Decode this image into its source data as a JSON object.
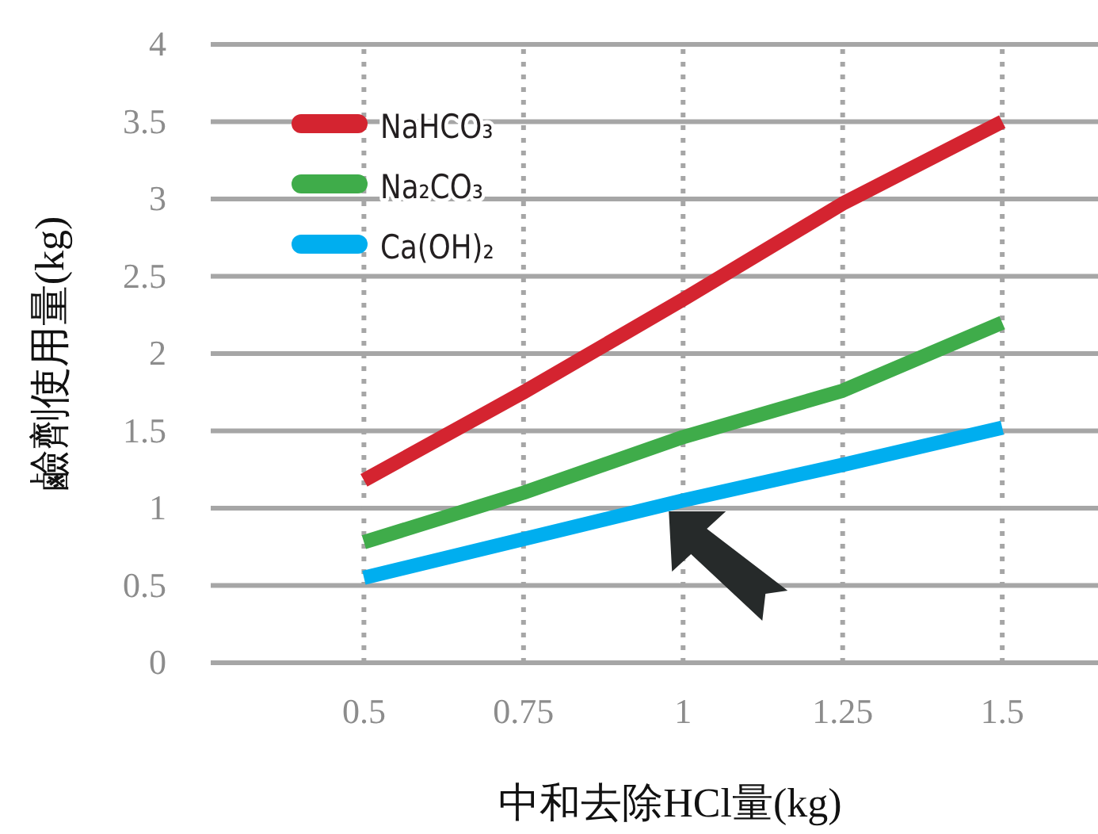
{
  "chart_data": {
    "type": "line",
    "xlabel": "中和去除HCl量(kg)",
    "ylabel": "鹼劑使用量(kg)",
    "x": [
      0.5,
      0.75,
      1,
      1.25,
      1.5
    ],
    "series": [
      {
        "name": "NaHCO₃",
        "color": "#d42430",
        "values": [
          1.18,
          1.75,
          2.35,
          2.97,
          3.5
        ]
      },
      {
        "name": "Na₂CO₃",
        "color": "#3fac4a",
        "values": [
          0.78,
          1.1,
          1.46,
          1.76,
          2.2
        ]
      },
      {
        "name": "Ca(OH)₂",
        "color": "#00aeef",
        "values": [
          0.55,
          0.8,
          1.05,
          1.28,
          1.52
        ]
      }
    ],
    "xlim": [
      0.26,
      1.65
    ],
    "ylim": [
      0,
      4
    ],
    "xticks": [
      0.5,
      0.75,
      1,
      1.25,
      1.5
    ],
    "yticks": [
      0,
      0.5,
      1,
      1.5,
      2,
      2.5,
      3,
      3.5,
      4
    ],
    "grid": true,
    "legend": "top left",
    "marker": "none",
    "line_style": "solid"
  }
}
